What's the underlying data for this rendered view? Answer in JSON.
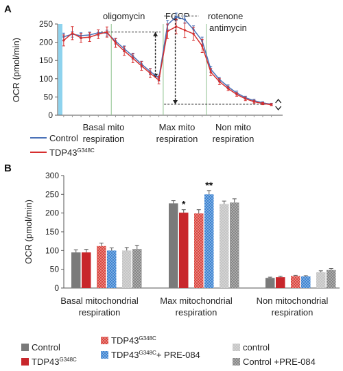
{
  "colors": {
    "control": "#4b72b8",
    "tdp43": "#d62e2e",
    "marker": "#8ed3ee",
    "grey": "#7a7a7a",
    "red": "#c8262b",
    "red_pattern": "#e8817f",
    "blue_pattern": "#4d8fd6",
    "light_grey": "#bdbdbd",
    "grey_pattern": "#8c8c8c"
  },
  "chart_data": [
    {
      "panel": "A",
      "type": "line",
      "ylabel": "OCR (pmol/min)",
      "ylim": [
        0,
        250
      ],
      "yticks": [
        0,
        50,
        100,
        150,
        200,
        250
      ],
      "x": [
        1,
        2,
        3,
        4,
        5,
        6,
        7,
        8,
        9,
        10,
        11,
        12,
        13,
        14,
        15,
        16,
        17,
        18,
        19,
        20,
        21,
        22,
        23,
        24,
        25
      ],
      "xlim": [
        0.3,
        26.3
      ],
      "series": [
        {
          "name": "Control",
          "values": [
            215,
            222,
            218,
            220,
            226,
            225,
            203,
            182,
            162,
            140,
            120,
            102,
            248,
            270,
            262,
            235,
            204,
            126,
            98,
            78,
            61,
            48,
            40,
            34,
            30
          ],
          "errors": [
            10,
            8,
            8,
            8,
            8,
            8,
            8,
            8,
            8,
            8,
            8,
            8,
            12,
            10,
            10,
            10,
            10,
            8,
            6,
            5,
            5,
            4,
            4,
            3,
            3
          ]
        },
        {
          "name": "TDP43G348C",
          "values": [
            205,
            225,
            212,
            214,
            222,
            228,
            198,
            176,
            156,
            135,
            115,
            96,
            230,
            243,
            233,
            223,
            190,
            118,
            92,
            73,
            57,
            45,
            37,
            32,
            29
          ],
          "errors": [
            15,
            18,
            12,
            12,
            12,
            14,
            12,
            12,
            12,
            12,
            12,
            10,
            20,
            20,
            20,
            18,
            18,
            10,
            8,
            6,
            5,
            5,
            4,
            3,
            3
          ]
        }
      ],
      "injections": [
        "oligomycin",
        "FCCP",
        "rotenone",
        "antimycin"
      ],
      "regions": [
        "Basal mito",
        "respiration",
        "Max mito",
        "respiration",
        "Non mito",
        "respiration"
      ],
      "legend": {
        "control": "Control",
        "tdp_base": "TDP43",
        "tdp_sup": "G348C"
      }
    },
    {
      "panel": "B",
      "type": "bar",
      "ylabel": "OCR (pmol/min)",
      "ylim": [
        0,
        300
      ],
      "yticks": [
        0,
        50,
        100,
        150,
        200,
        250,
        300
      ],
      "categories": [
        [
          "Basal mitochondrial",
          "respiration"
        ],
        [
          "Max mitochondrial",
          "respiration"
        ],
        [
          "Non mitochondrial",
          "respiration"
        ]
      ],
      "series": [
        {
          "name": "Control",
          "values": [
            95,
            226,
            27
          ],
          "errors": [
            7,
            7,
            2
          ]
        },
        {
          "name": "TDP43G348C",
          "values": [
            95,
            201,
            29
          ],
          "errors": [
            8,
            8,
            2
          ]
        },
        {
          "name": "TDP43G348C",
          "values": [
            112,
            199,
            32
          ],
          "errors": [
            8,
            10,
            2
          ]
        },
        {
          "name": "TDP43G348C+ PRE-084",
          "values": [
            100,
            250,
            31
          ],
          "errors": [
            7,
            10,
            2
          ]
        },
        {
          "name": "control",
          "values": [
            100,
            224,
            42
          ],
          "errors": [
            8,
            8,
            4
          ]
        },
        {
          "name": "Control +PRE-084",
          "values": [
            104,
            228,
            48
          ],
          "errors": [
            10,
            10,
            4
          ]
        }
      ],
      "significance": [
        "",
        "*",
        "",
        "**",
        "",
        ""
      ],
      "legend": [
        {
          "base": "Control",
          "sup": "",
          "tail": ""
        },
        {
          "base": "TDP43",
          "sup": "G348C",
          "tail": ""
        },
        {
          "base": "TDP43",
          "sup": "G348C",
          "tail": ""
        },
        {
          "base": "TDP43",
          "sup": "G348C",
          "tail": "+ PRE-084"
        },
        {
          "base": "control",
          "sup": "",
          "tail": ""
        },
        {
          "base": "Control +PRE-084",
          "sup": "",
          "tail": ""
        }
      ]
    }
  ],
  "panel_labels": {
    "a": "A",
    "b": "B"
  }
}
